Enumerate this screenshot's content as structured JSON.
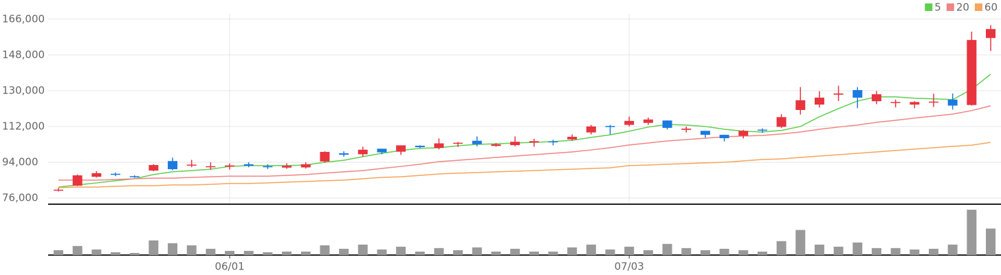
{
  "chart_data": {
    "type": "candlestick",
    "categories": [
      null,
      null,
      null,
      null,
      null,
      null,
      null,
      null,
      null,
      "06/01",
      null,
      null,
      null,
      null,
      null,
      null,
      null,
      null,
      null,
      null,
      null,
      null,
      null,
      null,
      null,
      null,
      null,
      null,
      null,
      null,
      "07/03",
      null,
      null,
      null,
      null,
      null,
      null,
      null,
      null,
      null,
      null,
      null,
      null,
      null,
      null,
      null,
      null,
      null,
      null,
      null
    ],
    "open": [
      79800,
      82200,
      86700,
      88200,
      87000,
      89800,
      94600,
      92500,
      91500,
      91800,
      93000,
      92000,
      91300,
      91400,
      94400,
      98500,
      98000,
      100800,
      99300,
      102300,
      101200,
      103400,
      104800,
      102200,
      102600,
      103900,
      104500,
      105500,
      109000,
      112200,
      112800,
      113800,
      115000,
      110300,
      109800,
      107800,
      107300,
      110400,
      111800,
      120300,
      123000,
      128000,
      130300,
      124700,
      124000,
      123000,
      124100,
      125500,
      122800,
      156500
    ],
    "high": [
      81000,
      87800,
      89500,
      88800,
      87400,
      93000,
      96300,
      95200,
      94000,
      93400,
      94000,
      93000,
      93500,
      94000,
      99500,
      99500,
      101800,
      100800,
      102500,
      102500,
      106000,
      104200,
      107000,
      103700,
      107000,
      105800,
      105300,
      108000,
      112800,
      112800,
      117000,
      116500,
      115000,
      112000,
      109800,
      107800,
      110300,
      111000,
      118200,
      131800,
      129700,
      132500,
      131800,
      129800,
      125500,
      124700,
      128500,
      128600,
      159700,
      163000
    ],
    "low": [
      79300,
      82000,
      86300,
      87000,
      86200,
      89500,
      90000,
      91500,
      90200,
      90300,
      91500,
      90600,
      90700,
      90800,
      93700,
      96800,
      96800,
      98000,
      97700,
      101000,
      100500,
      101700,
      102000,
      101800,
      102000,
      101800,
      102500,
      104800,
      108000,
      108000,
      112000,
      112800,
      110500,
      109000,
      106400,
      104500,
      106000,
      108800,
      111200,
      118000,
      121500,
      124800,
      121200,
      123200,
      121600,
      121200,
      121800,
      120500,
      122500,
      150000
    ],
    "close": [
      80200,
      87400,
      88500,
      87800,
      86600,
      92600,
      90500,
      92800,
      92000,
      92400,
      92200,
      91500,
      92200,
      93000,
      99200,
      97800,
      100300,
      99000,
      102500,
      101600,
      103500,
      103800,
      103100,
      103000,
      104300,
      104600,
      104000,
      106800,
      112000,
      111800,
      114800,
      115500,
      111300,
      110900,
      107800,
      106100,
      109800,
      110000,
      116700,
      125200,
      126500,
      128600,
      126500,
      128200,
      124300,
      124300,
      124500,
      122500,
      155500,
      161000
    ],
    "up_color": "#e8343e",
    "down_color": "#1a7ae0",
    "moving_averages": [
      {
        "name": "5",
        "color": "#5fcf50",
        "values": [
          81500,
          82600,
          83600,
          84700,
          85700,
          87800,
          89200,
          89800,
          90500,
          91900,
          92300,
          92300,
          92300,
          92600,
          94000,
          95000,
          96800,
          98500,
          99900,
          101000,
          101300,
          102300,
          103000,
          103300,
          103700,
          104000,
          104400,
          105000,
          106500,
          107800,
          109600,
          111700,
          113000,
          112700,
          112000,
          110600,
          109600,
          109200,
          110000,
          112000,
          116900,
          121000,
          124800,
          126900,
          126900,
          126200,
          125900,
          125500,
          130700,
          138300
        ]
      },
      {
        "name": "20",
        "color": "#f08585",
        "values": [
          85000,
          85000,
          85000,
          85300,
          85700,
          86000,
          86000,
          86400,
          86700,
          87000,
          87000,
          87000,
          87400,
          87800,
          88500,
          89200,
          89800,
          90900,
          91900,
          93000,
          94300,
          95000,
          95700,
          96400,
          97100,
          97800,
          98500,
          99200,
          100200,
          101300,
          102700,
          103700,
          104700,
          105400,
          106100,
          106800,
          107200,
          107500,
          108200,
          109200,
          110600,
          111700,
          112700,
          114100,
          115100,
          116200,
          117200,
          118200,
          120000,
          122400
        ]
      },
      {
        "name": "60",
        "color": "#f5a55c",
        "values": [
          81200,
          81500,
          81500,
          81900,
          82200,
          82200,
          82600,
          82600,
          82900,
          83300,
          83300,
          83600,
          84000,
          84300,
          84700,
          85000,
          85700,
          86400,
          86700,
          87400,
          88100,
          88500,
          88800,
          89200,
          89500,
          89800,
          90200,
          90500,
          90900,
          91200,
          92300,
          92600,
          93000,
          93300,
          93700,
          94000,
          94700,
          95400,
          95700,
          96400,
          97100,
          97800,
          98500,
          99200,
          99900,
          100600,
          101300,
          102000,
          102600,
          104000
        ]
      }
    ],
    "volume": {
      "color": "#999999",
      "ylim": [
        0,
        70
      ],
      "values": [
        7,
        13,
        8,
        4,
        3,
        21,
        17,
        14,
        9,
        6,
        6,
        4,
        5,
        5,
        14,
        9,
        15,
        8,
        12,
        5,
        10,
        7,
        11,
        5,
        9,
        5,
        5,
        11,
        15,
        8,
        12,
        7,
        16,
        10,
        7,
        9,
        7,
        5,
        20,
        36,
        15,
        12,
        18,
        10,
        10,
        8,
        9,
        15,
        65,
        38
      ]
    },
    "ylim": [
      72900,
      168700
    ],
    "yticks": [
      {
        "value": 76000,
        "label": "76,000"
      },
      {
        "value": 94000,
        "label": "94,000"
      },
      {
        "value": 112000,
        "label": "112,000"
      },
      {
        "value": 130000,
        "label": "130,000"
      },
      {
        "value": 148000,
        "label": "148,000"
      },
      {
        "value": 166000,
        "label": "166,000"
      }
    ],
    "grid": true,
    "legend": "top-right"
  }
}
